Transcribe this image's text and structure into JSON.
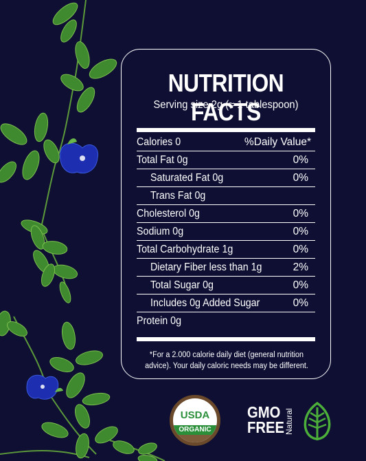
{
  "label": {
    "title": "NUTRITION FACTS",
    "serving": "Serving size 2g (≈ 1 tablespoon)",
    "header": {
      "calories": "Calories 0",
      "dv": "%Daily Value*"
    },
    "rows": [
      {
        "label": "Total Fat 0g",
        "value": "0%"
      },
      {
        "label": "Saturated Fat 0g",
        "value": "0%"
      },
      {
        "label": "Trans Fat 0g",
        "value": ""
      },
      {
        "label": "Cholesterol 0g",
        "value": "0%"
      },
      {
        "label": "Sodium 0g",
        "value": "0%"
      },
      {
        "label": "Total Carbohydrate 1g",
        "value": "0%"
      },
      {
        "label": "Dietary Fiber less than 1g",
        "value": "2%"
      },
      {
        "label": "Total Sugar 0g",
        "value": "0%"
      },
      {
        "label": "Includes 0g Added Sugar",
        "value": "0%"
      },
      {
        "label": "Protein 0g",
        "value": ""
      }
    ],
    "footnote": "*For a 2.000 calorie daily diet (general nutrition advice). Your daily caloric needs may be different."
  },
  "badges": {
    "usda_top": "USDA",
    "usda_band": "ORGANIC",
    "gmo_line1": "GMO",
    "gmo_line2": "FREE",
    "natural": "Natural"
  },
  "colors": {
    "background": "#0e0f33",
    "leaf": "#3f8a2e",
    "flower": "#1d2fb0",
    "usda_green": "#2b8f3a",
    "usda_brown": "#7c5b3a"
  }
}
